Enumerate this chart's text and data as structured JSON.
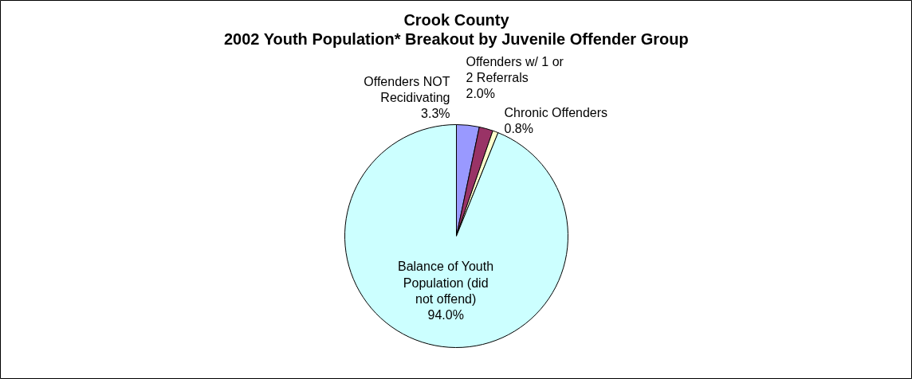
{
  "chart_data": {
    "type": "pie",
    "title": "Crook County",
    "subtitle": "2002 Youth Population* Breakout by Juvenile Offender Group",
    "categories": [
      "Offenders NOT Recidivating",
      "Offenders w/ 1 or 2 Referrals",
      "Chronic Offenders",
      "Balance of Youth Population (did not offend)"
    ],
    "values": [
      3.3,
      2.0,
      0.8,
      94.0
    ],
    "colors": [
      "#9999ff",
      "#993366",
      "#ffffcc",
      "#ccffff"
    ],
    "value_labels": [
      "3.3%",
      "2.0%",
      "0.8%",
      "94.0%"
    ]
  }
}
